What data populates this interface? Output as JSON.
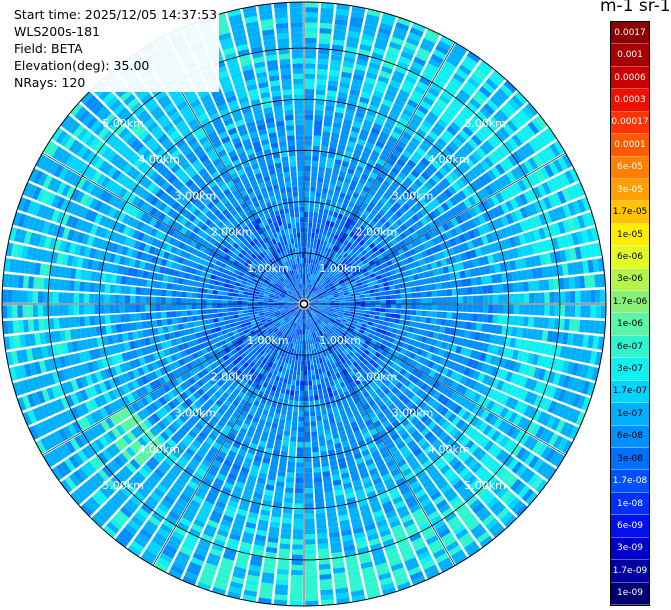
{
  "info": {
    "start_time": "Start time: 2025/12/05 14:37:53",
    "instrument": "WLS200s-181",
    "field": "Field: BETA",
    "elevation": "Elevation(deg): 35.00",
    "nrays": "NRays: 120"
  },
  "colorbar": {
    "title": "m-1 sr-1",
    "levels": [
      {
        "label": "0.0017",
        "color": "#8b0000",
        "text": "#ffffff"
      },
      {
        "label": "0.001",
        "color": "#a80000",
        "text": "#ffffff"
      },
      {
        "label": "0.0006",
        "color": "#cc0000",
        "text": "#ffffff"
      },
      {
        "label": "0.0003",
        "color": "#ee1100",
        "text": "#ffffff"
      },
      {
        "label": "0.00017",
        "color": "#ff3300",
        "text": "#ffffff"
      },
      {
        "label": "0.0001",
        "color": "#ff5a00",
        "text": "#ffffff"
      },
      {
        "label": "6e-05",
        "color": "#ff7f00",
        "text": "#ffffff"
      },
      {
        "label": "3e-05",
        "color": "#ffa000",
        "text": "#ffffff"
      },
      {
        "label": "1.7e-05",
        "color": "#ffc400",
        "text": "#000000"
      },
      {
        "label": "1e-05",
        "color": "#ffee00",
        "text": "#000000"
      },
      {
        "label": "6e-06",
        "color": "#e2fb22",
        "text": "#000000"
      },
      {
        "label": "3e-06",
        "color": "#b4f44c",
        "text": "#000000"
      },
      {
        "label": "1.7e-06",
        "color": "#86f078",
        "text": "#000000"
      },
      {
        "label": "1e-06",
        "color": "#5af5a6",
        "text": "#000000"
      },
      {
        "label": "6e-07",
        "color": "#2ef5d0",
        "text": "#000000"
      },
      {
        "label": "3e-07",
        "color": "#10f0f2",
        "text": "#000000"
      },
      {
        "label": "1.7e-07",
        "color": "#00d4ff",
        "text": "#000000"
      },
      {
        "label": "1e-07",
        "color": "#00b0ff",
        "text": "#000000"
      },
      {
        "label": "6e-08",
        "color": "#0090ff",
        "text": "#000000"
      },
      {
        "label": "3e-08",
        "color": "#0070ff",
        "text": "#000000"
      },
      {
        "label": "1.7e-08",
        "color": "#0050ff",
        "text": "#ffffff"
      },
      {
        "label": "1e-08",
        "color": "#0030ff",
        "text": "#ffffff"
      },
      {
        "label": "6e-09",
        "color": "#0010ee",
        "text": "#ffffff"
      },
      {
        "label": "3e-09",
        "color": "#0000cc",
        "text": "#ffffff"
      },
      {
        "label": "1.7e-09",
        "color": "#0000a0",
        "text": "#ffffff"
      },
      {
        "label": "1e-09",
        "color": "#000070",
        "text": "#ffffff"
      }
    ]
  },
  "chart_data": {
    "type": "heatmap",
    "projection": "polar-ppi",
    "nrays": 120,
    "max_range_km": 5.9,
    "range_rings_km": [
      1.0,
      2.0,
      3.0,
      4.0,
      5.0
    ],
    "ring_labels": [
      "1.00km",
      "2.00km",
      "3.00km",
      "4.00km",
      "5.00km"
    ],
    "radial_lines_deg": [
      0,
      30,
      60,
      90,
      120,
      150,
      180,
      210,
      240,
      270,
      300,
      330
    ],
    "gate_spacing_km": 0.1,
    "background_level": "6e-08",
    "bands": [
      {
        "from_km": 0.0,
        "to_km": 1.9,
        "dominant": "3e-08",
        "mix": [
          "1e-08",
          "1.7e-08",
          "6e-08",
          "1e-07"
        ]
      },
      {
        "from_km": 1.9,
        "to_km": 2.6,
        "dominant": "6e-08",
        "mix": [
          "3e-08",
          "1e-07"
        ]
      },
      {
        "from_km": 2.6,
        "to_km": 3.7,
        "dominant": "6e-08",
        "mix": [
          "3e-08",
          "1e-07",
          "1.7e-07"
        ]
      },
      {
        "from_km": 3.7,
        "to_km": 4.6,
        "dominant": "1e-07",
        "mix": [
          "6e-08",
          "1.7e-07",
          "3e-07"
        ]
      },
      {
        "from_km": 4.6,
        "to_km": 5.9,
        "dominant": "1e-07",
        "mix": [
          "6e-08",
          "1.7e-07",
          "3e-07",
          "6e-07"
        ]
      }
    ],
    "enhanced_sectors": [
      {
        "from_az": 300,
        "to_az": 345,
        "from_km": 4.0,
        "to_km": 5.5,
        "level": "1.7e-07"
      },
      {
        "from_az": 25,
        "to_az": 80,
        "from_km": 4.5,
        "to_km": 5.9,
        "level": "3e-07"
      },
      {
        "from_az": 100,
        "to_az": 140,
        "from_km": 4.0,
        "to_km": 5.2,
        "level": "3e-07"
      },
      {
        "from_az": 140,
        "to_az": 200,
        "from_km": 4.8,
        "to_km": 5.8,
        "level": "6e-07"
      },
      {
        "from_az": 225,
        "to_az": 240,
        "from_km": 3.9,
        "to_km": 4.6,
        "level": "1e-06"
      }
    ]
  }
}
